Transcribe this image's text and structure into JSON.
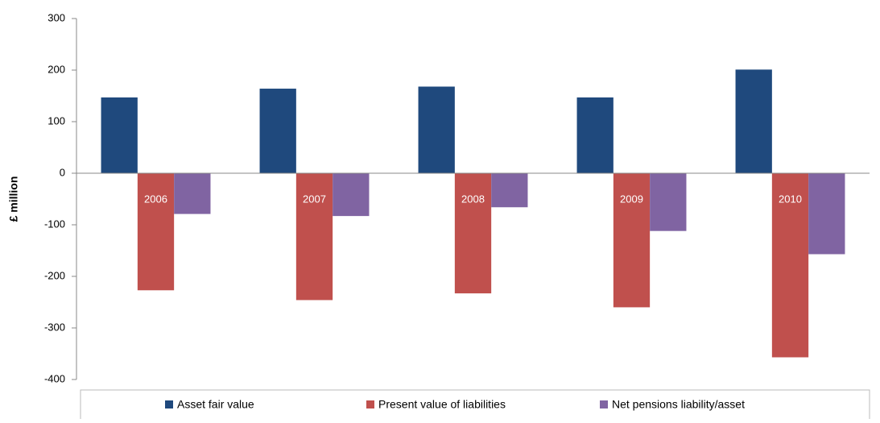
{
  "chart_data": {
    "type": "bar",
    "y_label": "£ million",
    "categories": [
      "2006",
      "2007",
      "2008",
      "2009",
      "2010"
    ],
    "series": [
      {
        "name": "Asset fair value",
        "color": "#1f497d",
        "values": [
          147,
          164,
          168,
          147,
          201
        ]
      },
      {
        "name": "Present value of liabilities",
        "color": "#c0504d",
        "values": [
          -227,
          -246,
          -233,
          -260,
          -357
        ]
      },
      {
        "name": "Net pensions liability/asset",
        "color": "#8064a2",
        "values": [
          -79,
          -83,
          -66,
          -112,
          -157
        ]
      }
    ],
    "ylim": [
      -400,
      300
    ],
    "yticks": [
      -400,
      -300,
      -200,
      -100,
      0,
      100,
      200,
      300
    ],
    "grid": false,
    "legend": "bottom"
  }
}
